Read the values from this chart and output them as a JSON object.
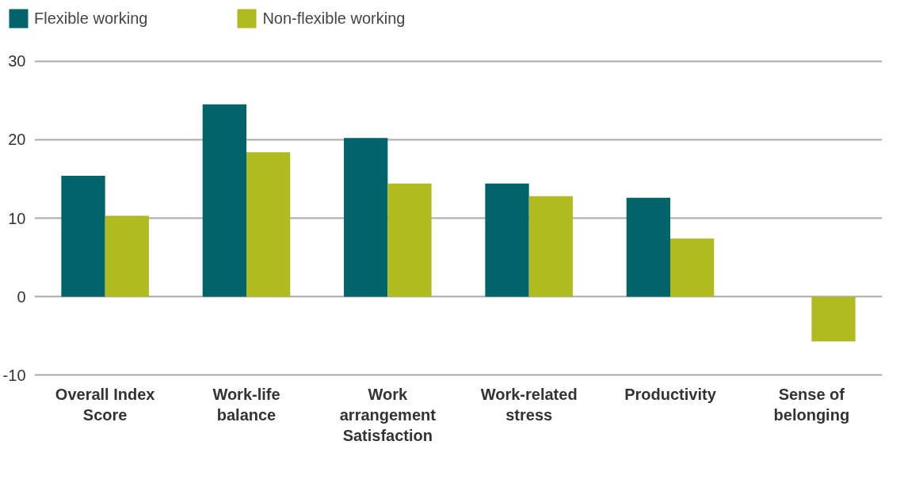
{
  "chart_data": {
    "type": "bar",
    "categories": [
      "Overall Index Score",
      "Work-life balance",
      "Work arrangement Satisfaction",
      "Work-related stress",
      "Productivity",
      "Sense of belonging"
    ],
    "series": [
      {
        "name": "Flexible working",
        "color": "#00646a",
        "values": [
          15.4,
          24.5,
          20.2,
          14.4,
          12.6,
          0
        ]
      },
      {
        "name": "Non-flexible working",
        "color": "#b0bb1f",
        "values": [
          10.3,
          18.4,
          14.4,
          12.8,
          7.4,
          -5.7
        ]
      }
    ],
    "ylim": [
      -10,
      30
    ],
    "yticks": [
      -10,
      0,
      10,
      20,
      30
    ],
    "grid": "y",
    "legend": "top left"
  }
}
